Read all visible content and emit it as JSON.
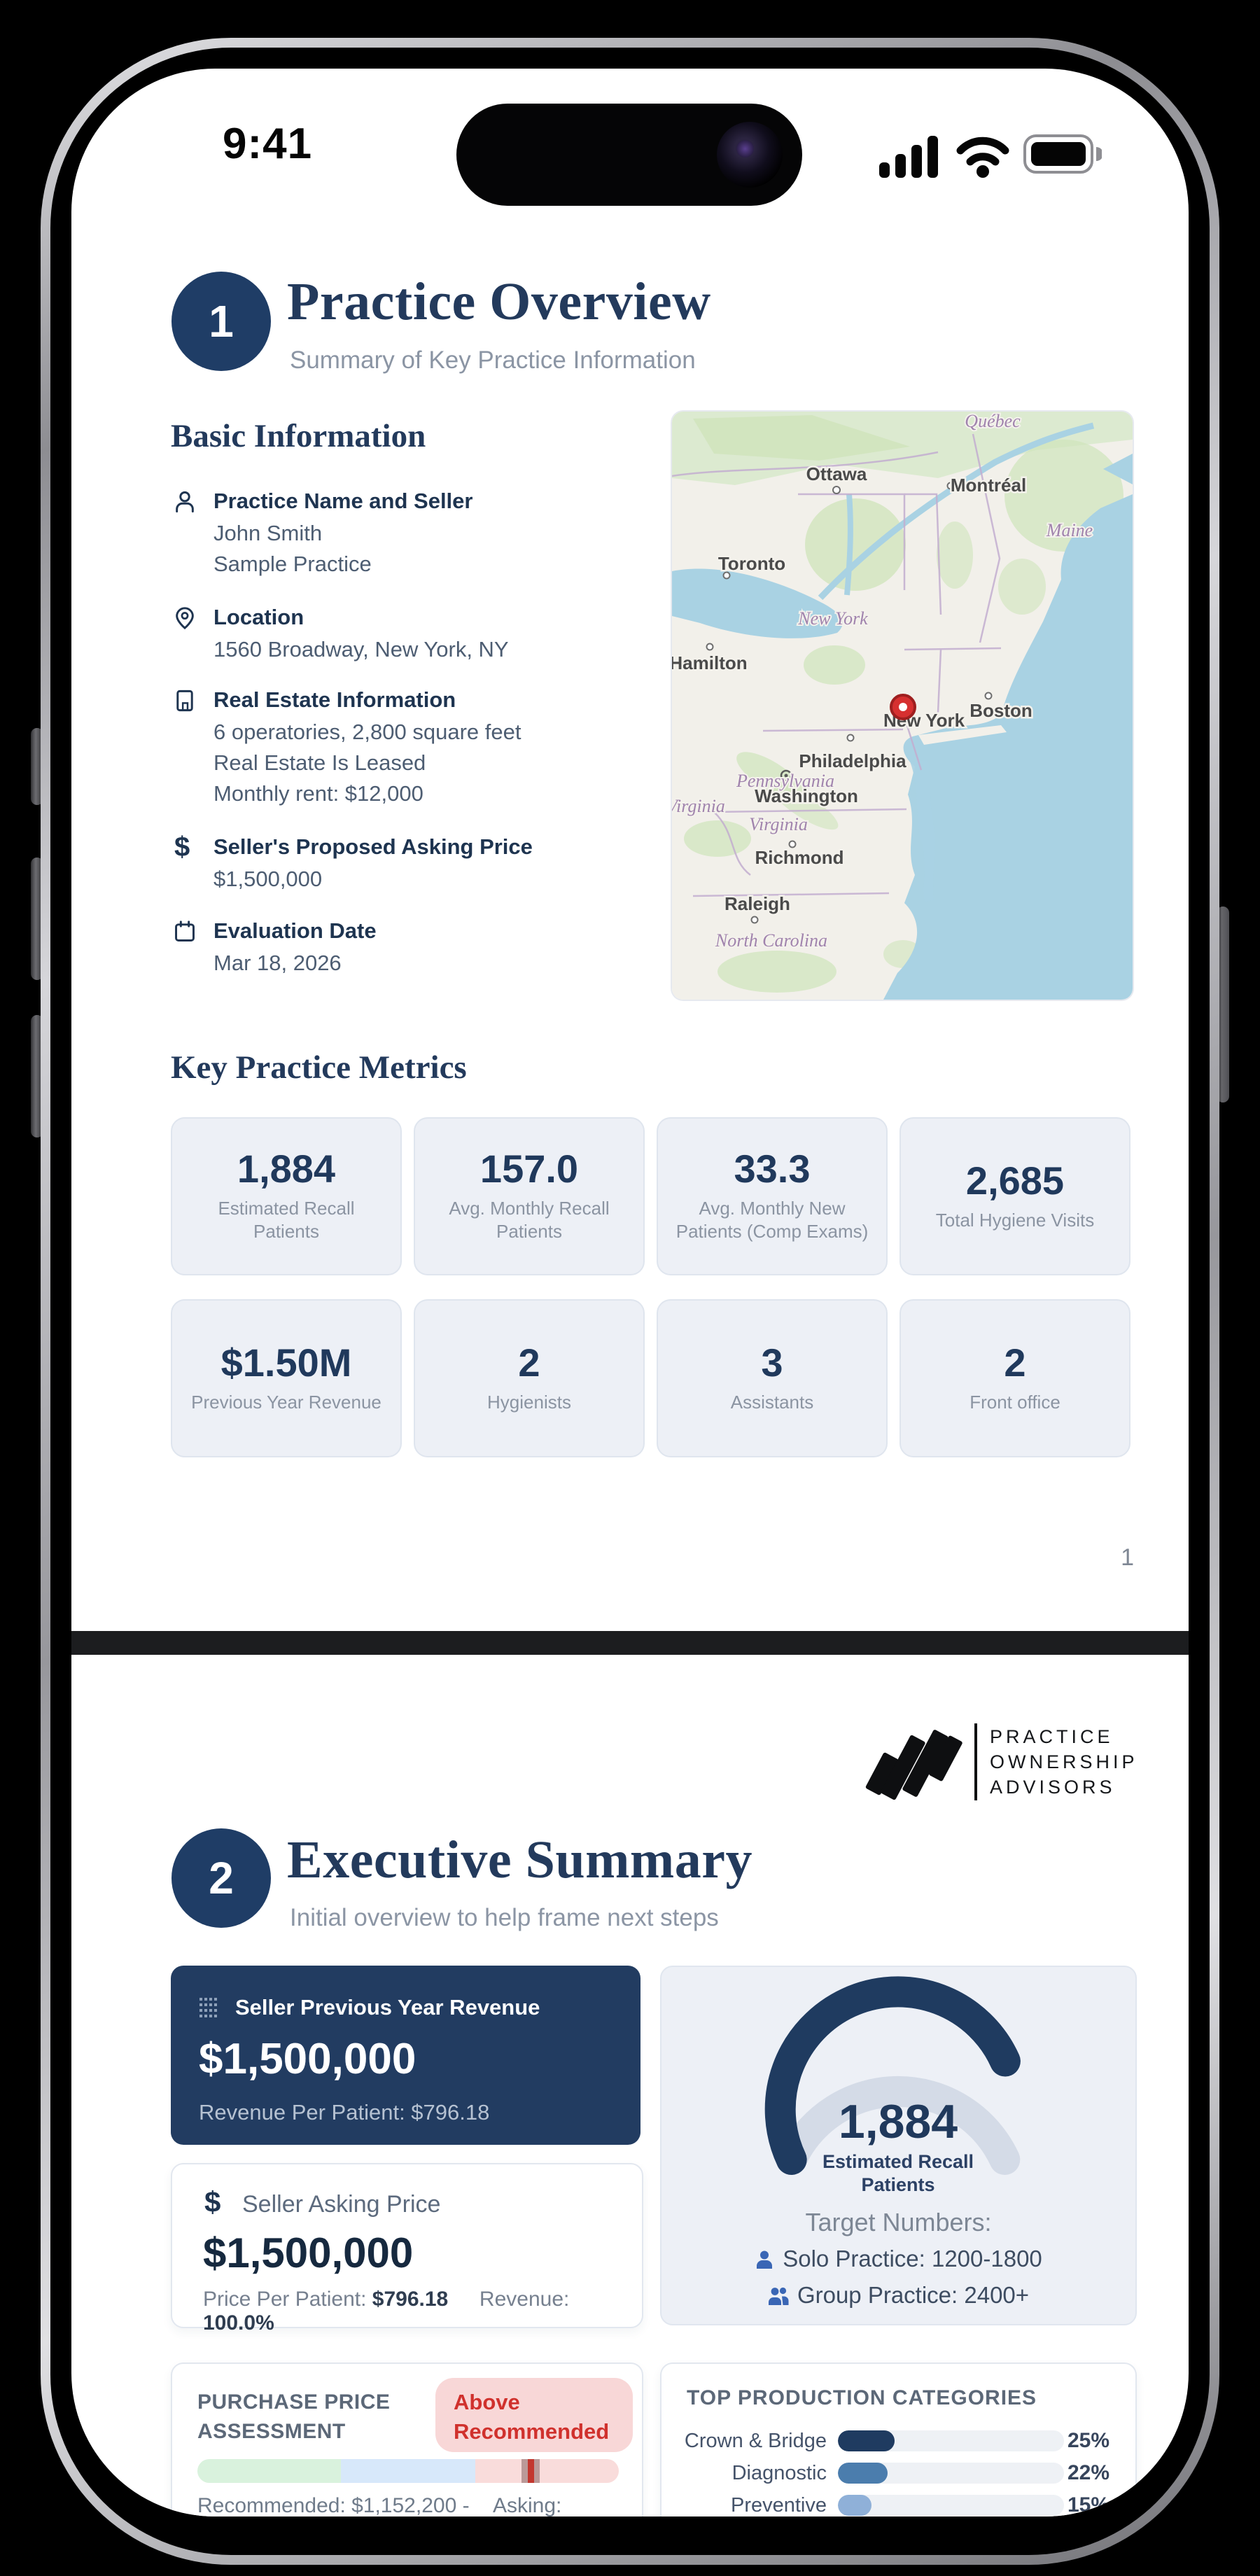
{
  "device": {
    "time": "9:41"
  },
  "page1": {
    "badge": "1",
    "title": "Practice Overview",
    "subtitle": "Summary of Key Practice Information",
    "basic_info": {
      "heading": "Basic Information",
      "items": [
        {
          "label": "Practice Name and Seller",
          "line1": "John Smith",
          "line2": "Sample Practice"
        },
        {
          "label": "Location",
          "line1": "1560 Broadway, New York, NY"
        },
        {
          "label": "Real Estate Information",
          "line1": "6 operatories, 2,800 square feet",
          "line2": "Real Estate Is Leased",
          "line3": "Monthly rent: $12,000"
        },
        {
          "label": "Seller's Proposed Asking Price",
          "line1": "$1,500,000"
        },
        {
          "label": "Evaluation Date",
          "line1": "Mar 18, 2026"
        }
      ]
    },
    "map": {
      "cities": [
        "Ottawa",
        "Montréal",
        "Toronto",
        "Hamilton",
        "Boston",
        "New York",
        "Philadelphia",
        "Washington",
        "Richmond",
        "Raleigh"
      ],
      "regions": [
        "Québec",
        "Maine",
        "New York",
        "Pennsylvania",
        "Virginia",
        "North Carolina",
        "st Virginia"
      ],
      "marker_city": "New York"
    },
    "metrics": {
      "heading": "Key Practice Metrics",
      "cards": [
        {
          "value": "1,884",
          "label": "Estimated Recall Patients"
        },
        {
          "value": "157.0",
          "label": "Avg. Monthly Recall Patients"
        },
        {
          "value": "33.3",
          "label": "Avg. Monthly New Patients (Comp Exams)"
        },
        {
          "value": "2,685",
          "label": "Total Hygiene Visits"
        },
        {
          "value": "$1.50M",
          "label": "Previous Year Revenue"
        },
        {
          "value": "2",
          "label": "Hygienists"
        },
        {
          "value": "3",
          "label": "Assistants"
        },
        {
          "value": "2",
          "label": "Front office"
        }
      ]
    },
    "page_number": "1"
  },
  "page2": {
    "logo": {
      "line1": "PRACTICE",
      "line2": "OWNERSHIP",
      "line3": "ADVISORS"
    },
    "badge": "2",
    "title": "Executive Summary",
    "subtitle": "Initial overview to help frame next steps",
    "revenue_card": {
      "label": "Seller Previous Year Revenue",
      "value": "$1,500,000",
      "sub": "Revenue Per Patient: $796.18"
    },
    "asking_card": {
      "label": "Seller Asking Price",
      "dollar": "$",
      "value": "$1,500,000",
      "sub1_label": "Price Per Patient:",
      "sub1_value": "$796.18",
      "sub2_label": "Revenue:",
      "sub2_value": "100.0%"
    },
    "recall_card": {
      "value": "1,884",
      "label_line1": "Estimated Recall",
      "label_line2": "Patients",
      "target_heading": "Target Numbers:",
      "target1": "Solo Practice: 1200-1800",
      "target2": "Group Practice: 2400+"
    },
    "purchase_card": {
      "title_line1": "PURCHASE PRICE",
      "title_line2": "ASSESSMENT",
      "badge_line1": "Above",
      "badge_line2": "Recommended",
      "footer_left": "Recommended: $1,152,200 -",
      "footer_right": "Asking:"
    },
    "production_card": {
      "heading": "TOP PRODUCTION CATEGORIES"
    }
  },
  "chart_data": [
    {
      "type": "gauge",
      "title": "Estimated Recall Patients",
      "value": 1884,
      "min": 0,
      "max": 2400,
      "fill_color": "#1f3b60",
      "track_color": "#d4dbe7",
      "annotations": [
        "Target Numbers:",
        "Solo Practice: 1200-1800",
        "Group Practice: 2400+"
      ]
    },
    {
      "type": "bar",
      "title": "TOP PRODUCTION CATEGORIES",
      "categories": [
        "Crown & Bridge",
        "Diagnostic",
        "Preventive"
      ],
      "values": [
        25,
        22,
        15
      ],
      "unit": "%",
      "bar_colors": [
        "#1f3b60",
        "#4b7dad",
        "#8fb0d8"
      ]
    },
    {
      "type": "range",
      "title": "PURCHASE PRICE ASSESSMENT",
      "status": "Above Recommended",
      "marker_pct": 79,
      "segments": [
        "below",
        "recommended",
        "above"
      ],
      "segment_colors": [
        "#d9f2dd",
        "#d7e8fa",
        "#f9dcdb"
      ],
      "recommended_min": "$1,152,200"
    }
  ],
  "colors": {
    "navy": "#1f3b60",
    "accent_blue": "#3a66b5",
    "red": "#d0312d",
    "red_bg": "#f8d7d7"
  }
}
